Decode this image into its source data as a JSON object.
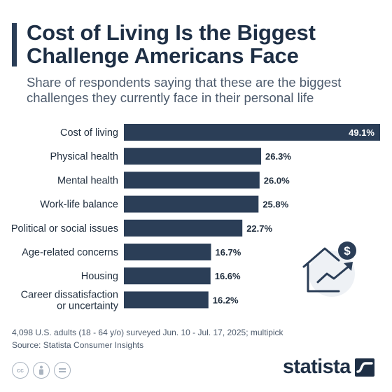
{
  "title": "Cost of Living Is the Biggest Challenge Americans Face",
  "subtitle": "Share of respondents saying that these are the biggest challenges they currently face in their personal life",
  "chart_data": {
    "type": "bar",
    "orientation": "horizontal",
    "categories": [
      "Cost of living",
      "Physical health",
      "Mental health",
      "Work-life balance",
      "Political or social issues",
      "Age-related concerns",
      "Housing",
      "Career dissatisfaction or uncertainty"
    ],
    "category_lines": [
      [
        "Cost of living"
      ],
      [
        "Physical health"
      ],
      [
        "Mental health"
      ],
      [
        "Work-life balance"
      ],
      [
        "Political or social issues"
      ],
      [
        "Age-related concerns"
      ],
      [
        "Housing"
      ],
      [
        "Career dissatisfaction",
        "or uncertainty"
      ]
    ],
    "values": [
      49.1,
      26.3,
      26.0,
      25.8,
      22.7,
      16.7,
      16.6,
      16.2
    ],
    "value_labels": [
      "49.1%",
      "26.3%",
      "26.0%",
      "25.8%",
      "22.7%",
      "16.7%",
      "16.6%",
      "16.2%"
    ],
    "xlim": [
      0,
      49.1
    ],
    "bar_color": "#2b3e57",
    "grid": false,
    "legend": "none"
  },
  "footer": {
    "note": "4,098 U.S. adults (18 - 64 y/o) surveyed Jun. 10 - Jul. 17, 2025; multipick",
    "source": "Source: Statista Consumer Insights"
  },
  "brand": {
    "name": "statista"
  },
  "icons": {
    "illustration": "house-price-rising-icon",
    "license": [
      "cc-icon",
      "attribution-icon",
      "no-derivatives-icon"
    ],
    "logo": "statista-logo-icon"
  },
  "colors": {
    "primary": "#2b3e57",
    "text": "#1f2d3d",
    "muted": "#4d5b6d"
  }
}
